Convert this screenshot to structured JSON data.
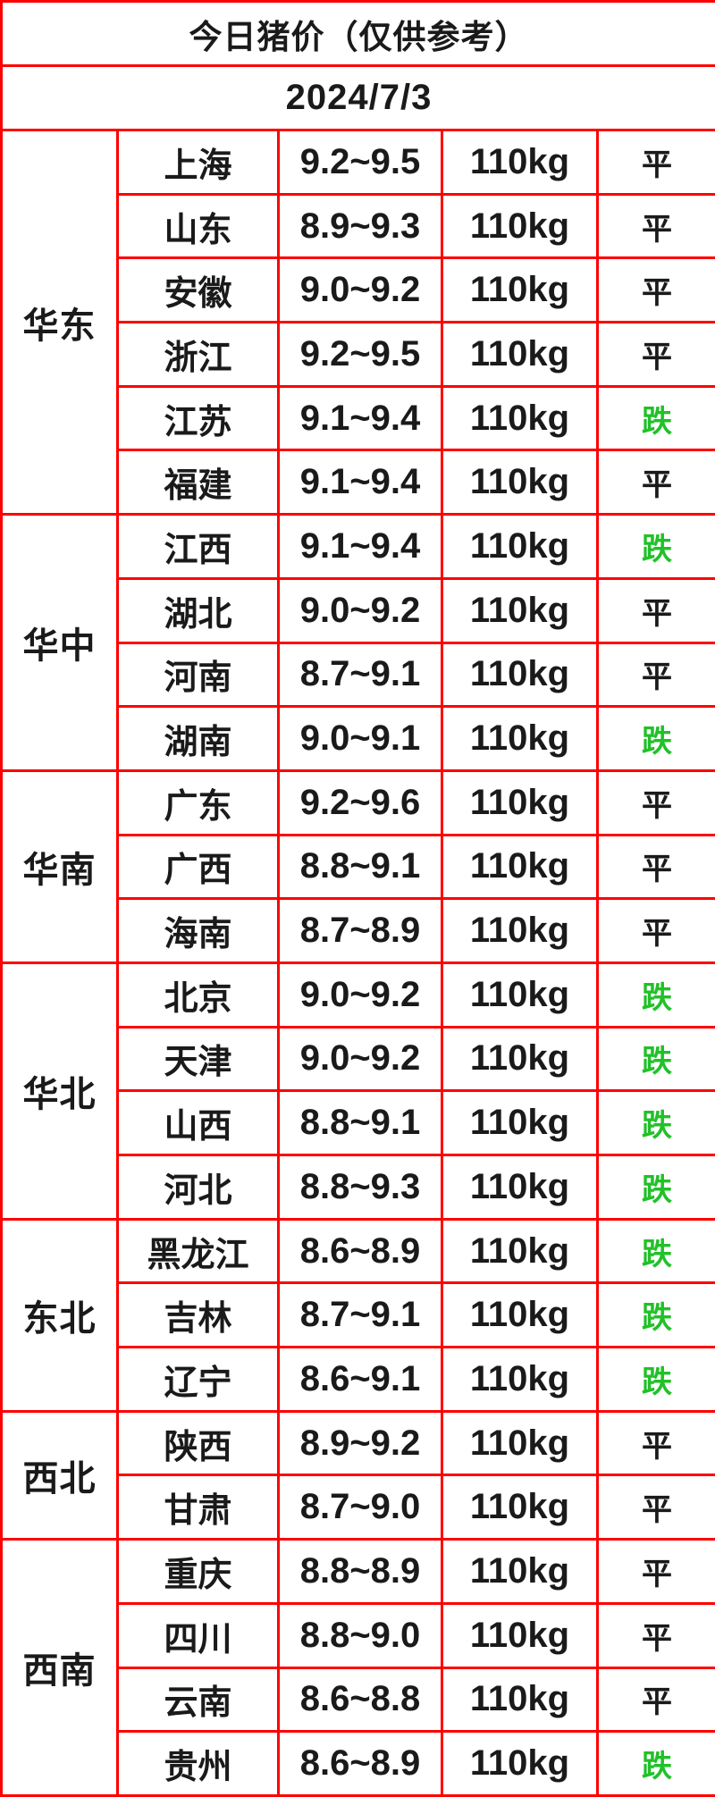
{
  "title": "今日猪价（仅供参考）",
  "date": "2024/7/3",
  "weight_label": "110kg",
  "status_legend": {
    "flat": "平",
    "down": "跌"
  },
  "colors": {
    "header_orange": "#ea6419",
    "border_red": "#fe0000",
    "status_down_green": "#21c128",
    "text_black": "#1a1a1a",
    "cell_white": "#ffffff"
  },
  "regions": [
    {
      "name": "华东",
      "rows": [
        {
          "province": "上海",
          "price": "9.2~9.5",
          "weight": "110kg",
          "status": "平"
        },
        {
          "province": "山东",
          "price": "8.9~9.3",
          "weight": "110kg",
          "status": "平"
        },
        {
          "province": "安徽",
          "price": "9.0~9.2",
          "weight": "110kg",
          "status": "平"
        },
        {
          "province": "浙江",
          "price": "9.2~9.5",
          "weight": "110kg",
          "status": "平"
        },
        {
          "province": "江苏",
          "price": "9.1~9.4",
          "weight": "110kg",
          "status": "跌"
        },
        {
          "province": "福建",
          "price": "9.1~9.4",
          "weight": "110kg",
          "status": "平"
        }
      ]
    },
    {
      "name": "华中",
      "rows": [
        {
          "province": "江西",
          "price": "9.1~9.4",
          "weight": "110kg",
          "status": "跌"
        },
        {
          "province": "湖北",
          "price": "9.0~9.2",
          "weight": "110kg",
          "status": "平"
        },
        {
          "province": "河南",
          "price": "8.7~9.1",
          "weight": "110kg",
          "status": "平"
        },
        {
          "province": "湖南",
          "price": "9.0~9.1",
          "weight": "110kg",
          "status": "跌"
        }
      ]
    },
    {
      "name": "华南",
      "rows": [
        {
          "province": "广东",
          "price": "9.2~9.6",
          "weight": "110kg",
          "status": "平"
        },
        {
          "province": "广西",
          "price": "8.8~9.1",
          "weight": "110kg",
          "status": "平"
        },
        {
          "province": "海南",
          "price": "8.7~8.9",
          "weight": "110kg",
          "status": "平"
        }
      ]
    },
    {
      "name": "华北",
      "rows": [
        {
          "province": "北京",
          "price": "9.0~9.2",
          "weight": "110kg",
          "status": "跌"
        },
        {
          "province": "天津",
          "price": "9.0~9.2",
          "weight": "110kg",
          "status": "跌"
        },
        {
          "province": "山西",
          "price": "8.8~9.1",
          "weight": "110kg",
          "status": "跌"
        },
        {
          "province": "河北",
          "price": "8.8~9.3",
          "weight": "110kg",
          "status": "跌"
        }
      ]
    },
    {
      "name": "东北",
      "rows": [
        {
          "province": "黑龙江",
          "price": "8.6~8.9",
          "weight": "110kg",
          "status": "跌"
        },
        {
          "province": "吉林",
          "price": "8.7~9.1",
          "weight": "110kg",
          "status": "跌"
        },
        {
          "province": "辽宁",
          "price": "8.6~9.1",
          "weight": "110kg",
          "status": "跌"
        }
      ]
    },
    {
      "name": "西北",
      "rows": [
        {
          "province": "陕西",
          "price": "8.9~9.2",
          "weight": "110kg",
          "status": "平"
        },
        {
          "province": "甘肃",
          "price": "8.7~9.0",
          "weight": "110kg",
          "status": "平"
        }
      ]
    },
    {
      "name": "西南",
      "rows": [
        {
          "province": "重庆",
          "price": "8.8~8.9",
          "weight": "110kg",
          "status": "平"
        },
        {
          "province": "四川",
          "price": "8.8~9.0",
          "weight": "110kg",
          "status": "平"
        },
        {
          "province": "云南",
          "price": "8.6~8.8",
          "weight": "110kg",
          "status": "平"
        },
        {
          "province": "贵州",
          "price": "8.6~8.9",
          "weight": "110kg",
          "status": "跌"
        }
      ]
    }
  ],
  "chart_data": {
    "type": "table",
    "title": "今日猪价（仅供参考）",
    "subtitle": "2024/7/3",
    "columns": [
      "region",
      "province",
      "price_range_yuan_per_jin",
      "weight",
      "trend"
    ],
    "rows": [
      [
        "华东",
        "上海",
        "9.2~9.5",
        "110kg",
        "平"
      ],
      [
        "华东",
        "山东",
        "8.9~9.3",
        "110kg",
        "平"
      ],
      [
        "华东",
        "安徽",
        "9.0~9.2",
        "110kg",
        "平"
      ],
      [
        "华东",
        "浙江",
        "9.2~9.5",
        "110kg",
        "平"
      ],
      [
        "华东",
        "江苏",
        "9.1~9.4",
        "110kg",
        "跌"
      ],
      [
        "华东",
        "福建",
        "9.1~9.4",
        "110kg",
        "平"
      ],
      [
        "华中",
        "江西",
        "9.1~9.4",
        "110kg",
        "跌"
      ],
      [
        "华中",
        "湖北",
        "9.0~9.2",
        "110kg",
        "平"
      ],
      [
        "华中",
        "河南",
        "8.7~9.1",
        "110kg",
        "平"
      ],
      [
        "华中",
        "湖南",
        "9.0~9.1",
        "110kg",
        "跌"
      ],
      [
        "华南",
        "广东",
        "9.2~9.6",
        "110kg",
        "平"
      ],
      [
        "华南",
        "广西",
        "8.8~9.1",
        "110kg",
        "平"
      ],
      [
        "华南",
        "海南",
        "8.7~8.9",
        "110kg",
        "平"
      ],
      [
        "华北",
        "北京",
        "9.0~9.2",
        "110kg",
        "跌"
      ],
      [
        "华北",
        "天津",
        "9.0~9.2",
        "110kg",
        "跌"
      ],
      [
        "华北",
        "山西",
        "8.8~9.1",
        "110kg",
        "跌"
      ],
      [
        "华北",
        "河北",
        "8.8~9.3",
        "110kg",
        "跌"
      ],
      [
        "东北",
        "黑龙江",
        "8.6~8.9",
        "110kg",
        "跌"
      ],
      [
        "东北",
        "吉林",
        "8.7~9.1",
        "110kg",
        "跌"
      ],
      [
        "东北",
        "辽宁",
        "8.6~9.1",
        "110kg",
        "跌"
      ],
      [
        "西北",
        "陕西",
        "8.9~9.2",
        "110kg",
        "平"
      ],
      [
        "西北",
        "甘肃",
        "8.7~9.0",
        "110kg",
        "平"
      ],
      [
        "西南",
        "重庆",
        "8.8~8.9",
        "110kg",
        "平"
      ],
      [
        "西南",
        "四川",
        "8.8~9.0",
        "110kg",
        "平"
      ],
      [
        "西南",
        "云南",
        "8.6~8.8",
        "110kg",
        "平"
      ],
      [
        "西南",
        "贵州",
        "8.6~8.9",
        "110kg",
        "跌"
      ]
    ]
  }
}
